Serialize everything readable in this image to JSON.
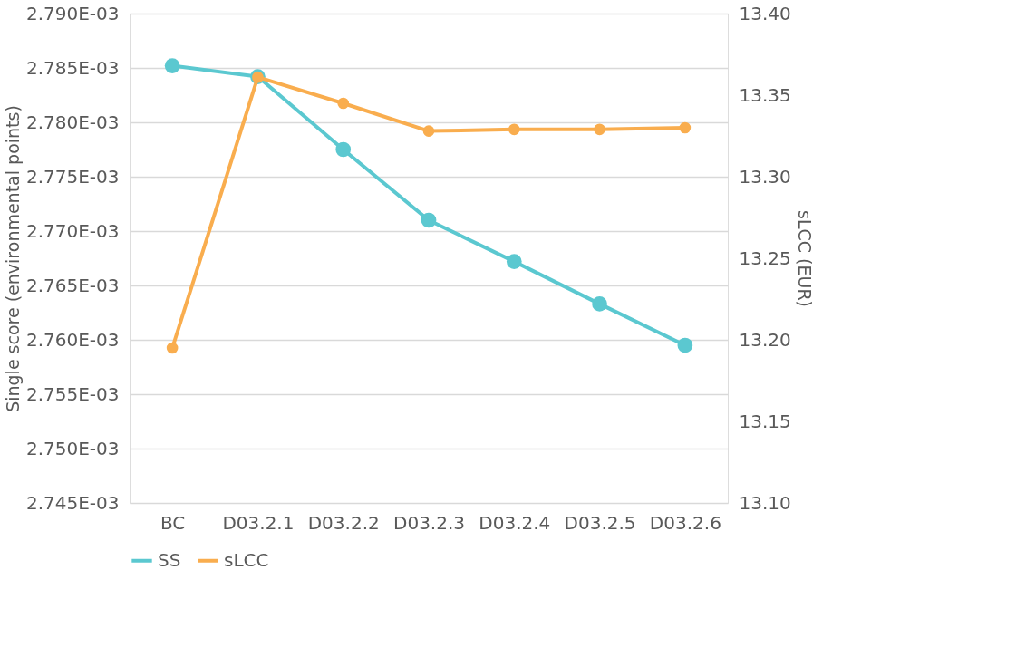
{
  "chart_data": {
    "type": "line",
    "ylabel": "Single score (environmental points)",
    "y2label": "sLCC (EUR)",
    "categories": [
      "BC",
      "D03.2.1",
      "D03.2.2",
      "D03.2.3",
      "D03.2.4",
      "D03.2.5",
      "D03.2.6"
    ],
    "series": [
      {
        "name": "SS",
        "color": "#5bc8d0",
        "values": [
          0.0027852,
          0.0027842,
          0.0027775,
          0.002771,
          0.0027672,
          0.0027633,
          0.0027595
        ]
      },
      {
        "name": "sLCC",
        "color": "#f9ad4e",
        "axis": "y2",
        "values": [
          13.195,
          13.361,
          13.345,
          13.328,
          13.329,
          13.329,
          13.33
        ]
      }
    ],
    "ylim": [
      0.002745,
      0.00279
    ],
    "yticks": [
      {
        "value": 0.002745,
        "label": "2.745E-03"
      },
      {
        "value": 0.00275,
        "label": "2.750E-03"
      },
      {
        "value": 0.002755,
        "label": "2.755E-03"
      },
      {
        "value": 0.00276,
        "label": "2.760E-03"
      },
      {
        "value": 0.002765,
        "label": "2.765E-03"
      },
      {
        "value": 0.00277,
        "label": "2.770E-03"
      },
      {
        "value": 0.002775,
        "label": "2.775E-03"
      },
      {
        "value": 0.00278,
        "label": "2.780E-03"
      },
      {
        "value": 0.002785,
        "label": "2.785E-03"
      },
      {
        "value": 0.00279,
        "label": "2.790E-03"
      }
    ],
    "y2lim": [
      13.1,
      13.4
    ],
    "y2ticks": [
      {
        "value": 13.1,
        "label": "13.10"
      },
      {
        "value": 13.15,
        "label": "13.15"
      },
      {
        "value": 13.2,
        "label": "13.20"
      },
      {
        "value": 13.25,
        "label": "13.25"
      },
      {
        "value": 13.3,
        "label": "13.30"
      },
      {
        "value": 13.35,
        "label": "13.35"
      },
      {
        "value": 13.4,
        "label": "13.40"
      }
    ],
    "grid": "y",
    "legend": "bottom",
    "marker": "circle",
    "line_style": "solid"
  }
}
